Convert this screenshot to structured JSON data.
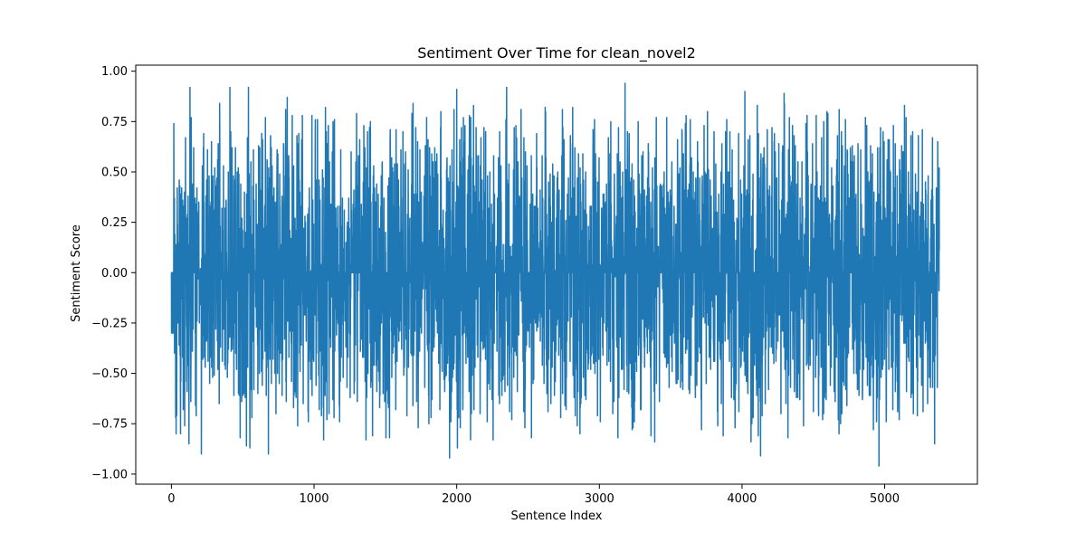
{
  "chart_data": {
    "type": "line",
    "title": "Sentiment Over Time for clean_novel2",
    "xlabel": "Sentence Index",
    "ylabel": "Sentiment Score",
    "xlim": [
      -250,
      5650
    ],
    "ylim": [
      -1.05,
      1.03
    ],
    "xticks": [
      0,
      1000,
      2000,
      3000,
      4000,
      5000
    ],
    "xtick_labels": [
      "0",
      "1000",
      "2000",
      "3000",
      "4000",
      "5000"
    ],
    "yticks": [
      -1.0,
      -0.75,
      -0.5,
      -0.25,
      0.0,
      0.25,
      0.5,
      0.75,
      1.0
    ],
    "ytick_labels": [
      "−1.00",
      "−0.75",
      "−0.50",
      "−0.25",
      "0.00",
      "0.25",
      "0.50",
      "0.75",
      "1.00"
    ],
    "grid": false,
    "legend": "none",
    "series": [
      {
        "color": "#1f77b4",
        "n_points": 5384,
        "x_start": 0,
        "x_end": 5383,
        "y_min": -0.96,
        "y_max": 0.94,
        "notable_points": [
          {
            "x": 30,
            "y": -0.72
          },
          {
            "x": 130,
            "y": 0.92
          },
          {
            "x": 210,
            "y": -0.9
          },
          {
            "x": 410,
            "y": 0.92
          },
          {
            "x": 540,
            "y": 0.92
          },
          {
            "x": 680,
            "y": -0.9
          },
          {
            "x": 1080,
            "y": 0.82
          },
          {
            "x": 1950,
            "y": -0.92
          },
          {
            "x": 2000,
            "y": 0.91
          },
          {
            "x": 2350,
            "y": 0.92
          },
          {
            "x": 3180,
            "y": 0.94
          },
          {
            "x": 4020,
            "y": 0.9
          },
          {
            "x": 4130,
            "y": -0.91
          },
          {
            "x": 4960,
            "y": -0.96
          }
        ]
      }
    ]
  }
}
